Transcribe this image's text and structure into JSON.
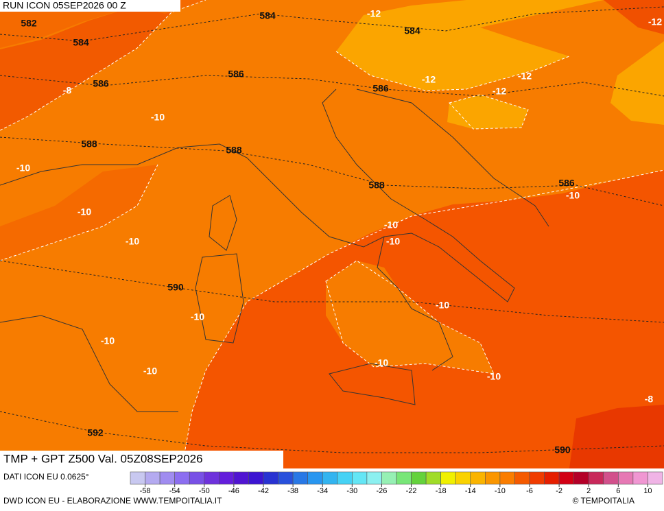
{
  "header": {
    "title": "RUN ICON 05SEP2026 00 Z"
  },
  "map": {
    "labels": [
      "582",
      "584",
      "586",
      "-8",
      "584",
      "-12",
      "584",
      "-12",
      "586",
      "586",
      "-12",
      "-12",
      "-12",
      "-10",
      "588",
      "588",
      "-10",
      "588",
      "586",
      "-10",
      "-10",
      "-10",
      "-10",
      "-10",
      "590",
      "-10",
      "-10",
      "-10",
      "-10",
      "-10",
      "-10",
      "-8",
      "592",
      "590"
    ]
  },
  "footer": {
    "product": "TMP + GPT Z500 Val. 05Z08SEP2026",
    "source": "DATI ICON EU 0.0625°",
    "credit": "DWD ICON EU - ELABORAZIONE WWW.TEMPOITALIA.IT",
    "copyright": "© TEMPOITALIA"
  },
  "colorbar": {
    "colors": [
      "#c8c8f0",
      "#b4aaf0",
      "#a08cf0",
      "#8c6ef0",
      "#7850e6",
      "#6e32dc",
      "#641edc",
      "#5014d2",
      "#3c14d2",
      "#2832d2",
      "#2850dc",
      "#2878e6",
      "#2896f0",
      "#32b4f0",
      "#46d2f5",
      "#64e6f5",
      "#8cf0f0",
      "#96f0b4",
      "#78e678",
      "#64d23c",
      "#a0dc28",
      "#f0f000",
      "#fad200",
      "#fab400",
      "#fa9600",
      "#fa7d00",
      "#f55a00",
      "#f03c00",
      "#e61e00",
      "#d20014",
      "#b40028",
      "#c8285a",
      "#d2508c",
      "#e678b4",
      "#f096d2",
      "#f0b4e6"
    ],
    "labels": [
      "-58",
      "-54",
      "-50",
      "-46",
      "-42",
      "-38",
      "-34",
      "-30",
      "-26",
      "-22",
      "-18",
      "-14",
      "-10",
      "-6",
      "-2",
      "2",
      "6",
      "10"
    ]
  }
}
